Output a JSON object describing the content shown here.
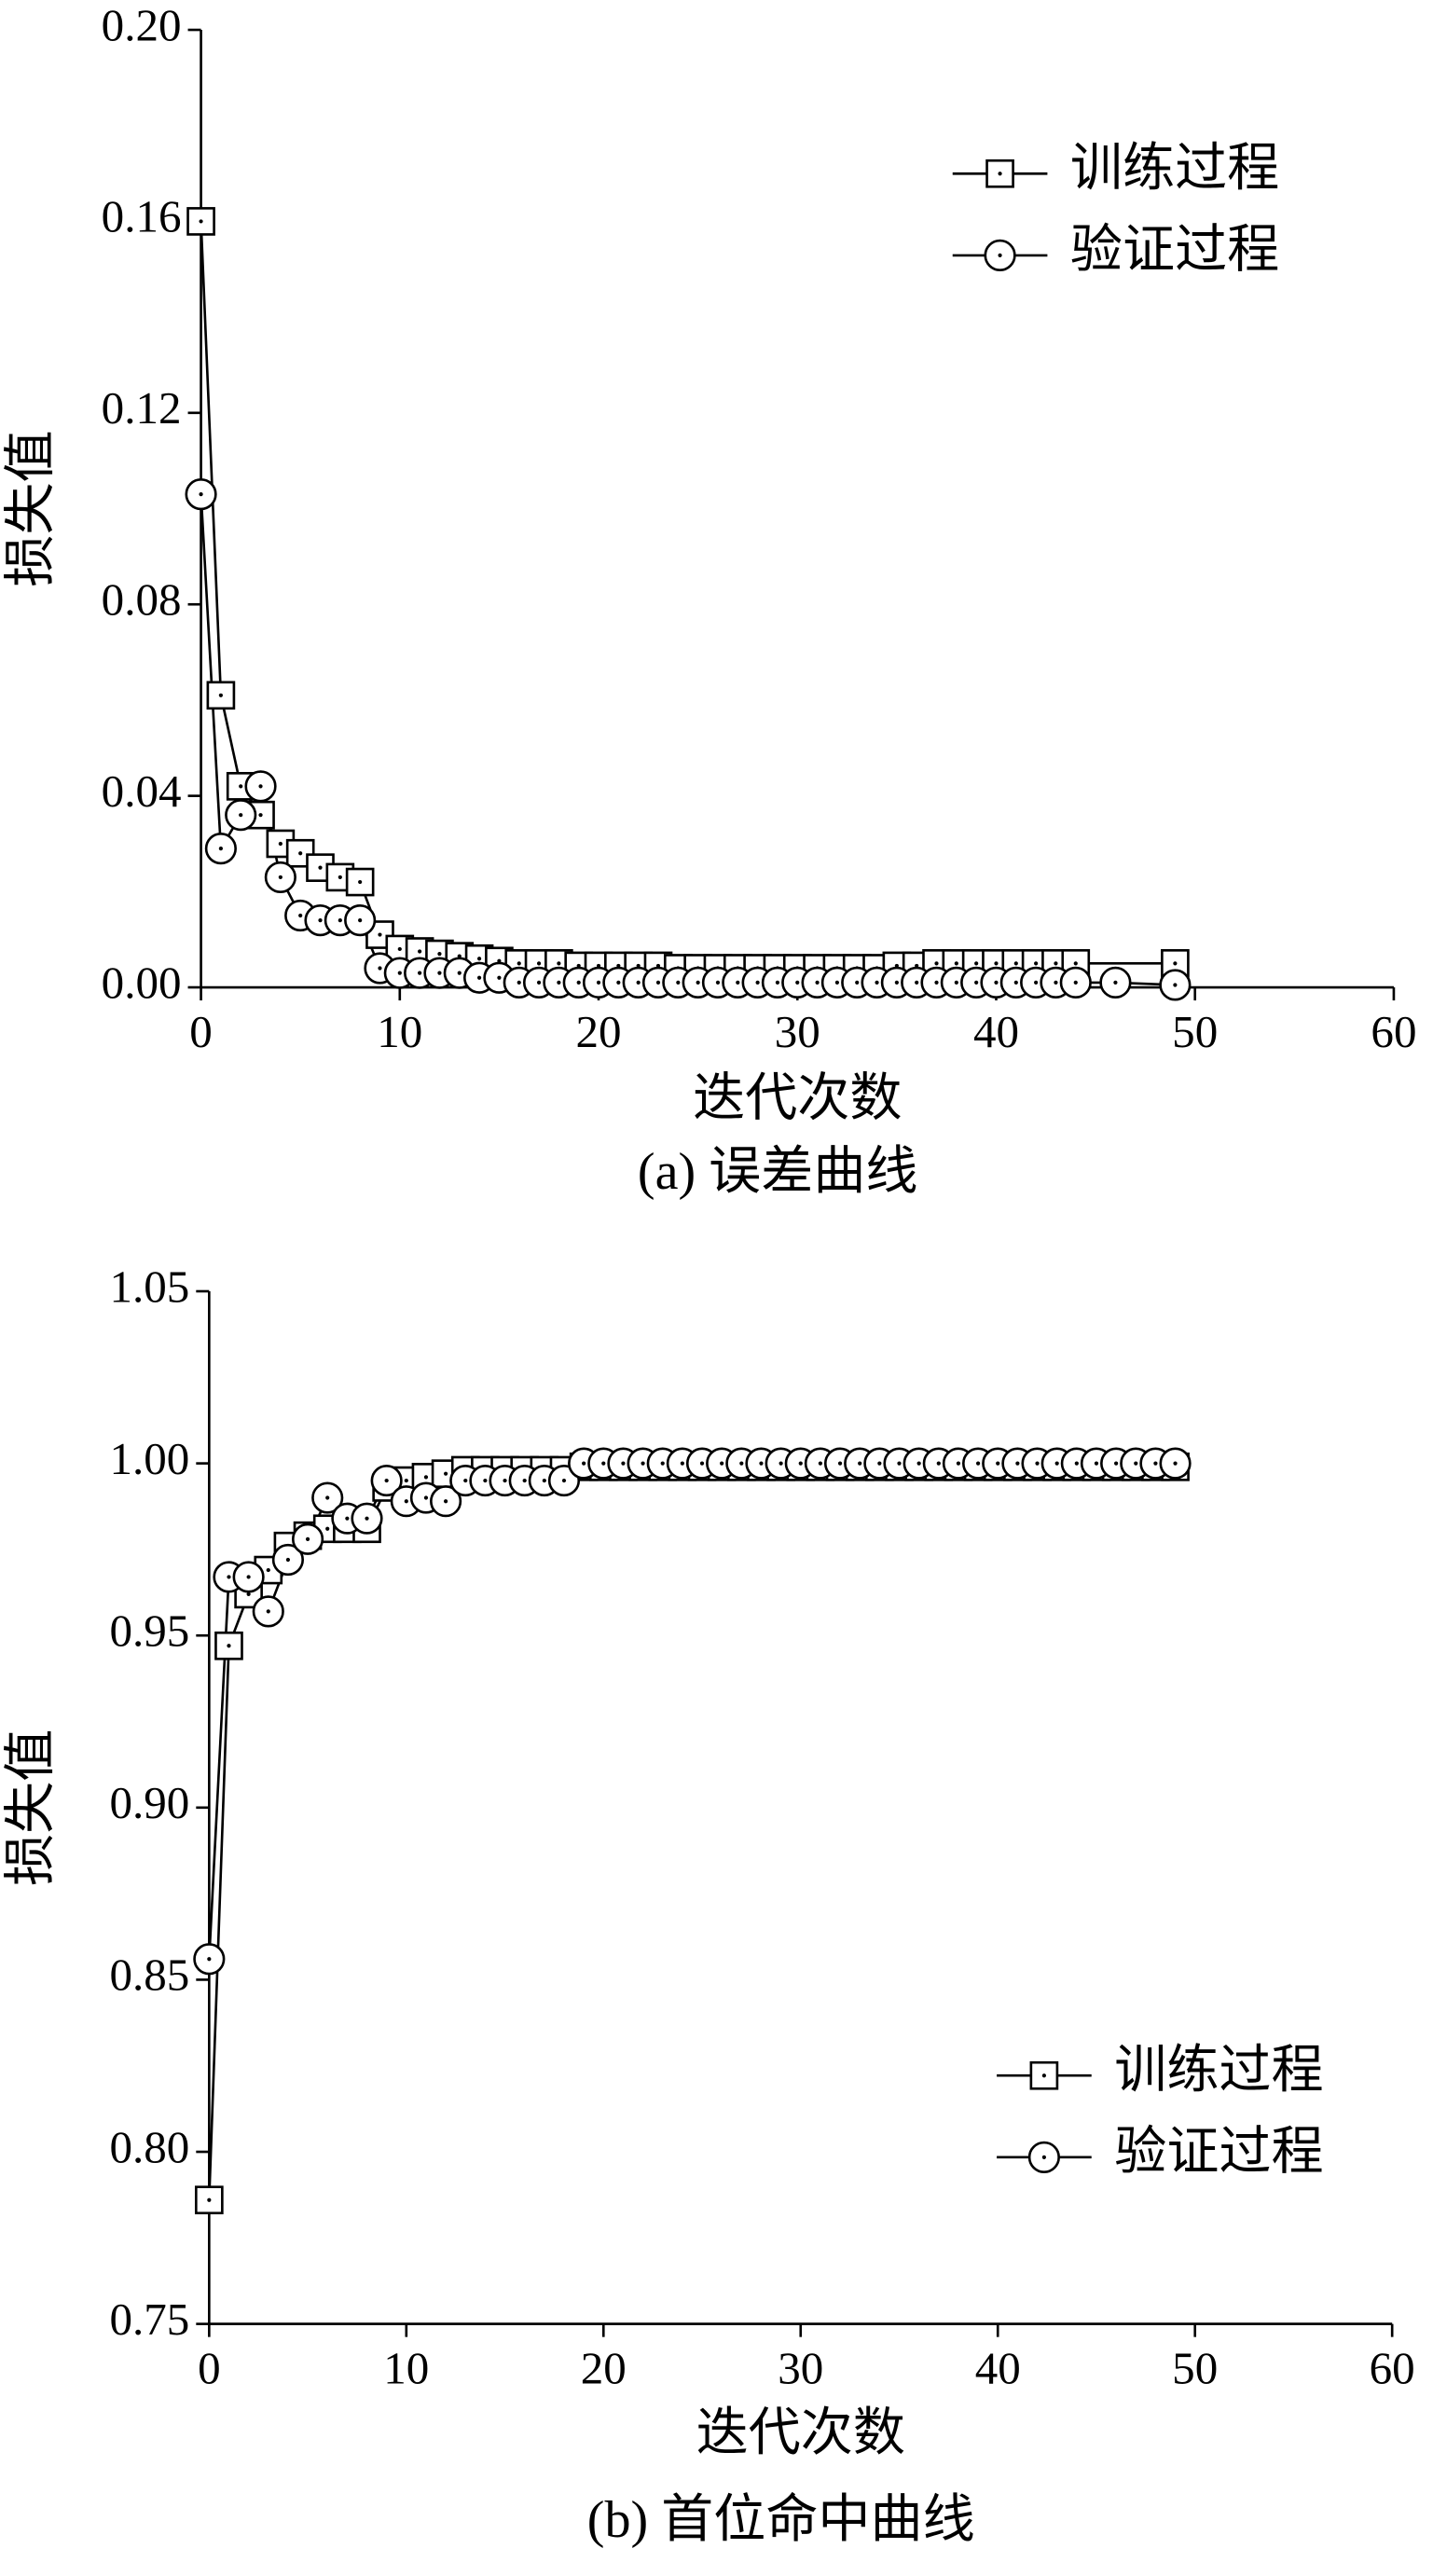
{
  "chart_data": [
    {
      "type": "line",
      "caption": "(a) 误差曲线",
      "x_label": "迭代次数",
      "y_label": "损失值",
      "legend": "upper right",
      "xlim": [
        0,
        60
      ],
      "xticks": [
        0,
        10,
        20,
        30,
        40,
        50,
        60
      ],
      "ylim": [
        0,
        0.2
      ],
      "yticks": [
        {
          "value": 0,
          "label": "0.00"
        },
        0.04,
        0.08,
        0.12,
        0.16,
        {
          "value": 0.2,
          "label": "0.20"
        }
      ],
      "series": [
        {
          "name": "训练过程",
          "color": "#000000",
          "marker": "square",
          "x": [
            0,
            1,
            2,
            3,
            4,
            5,
            6,
            7,
            8,
            9,
            10,
            11,
            12,
            13,
            14,
            15,
            16,
            17,
            18,
            19,
            20,
            21,
            22,
            23,
            24,
            25,
            26,
            27,
            28,
            29,
            30,
            31,
            32,
            33,
            34,
            35,
            36,
            37,
            38,
            39,
            40,
            41,
            42,
            43,
            44,
            49
          ],
          "values": [
            0.16,
            0.061,
            0.042,
            0.036,
            0.03,
            0.028,
            0.025,
            0.023,
            0.022,
            0.011,
            0.008,
            0.0075,
            0.007,
            0.0065,
            0.006,
            0.0055,
            0.005,
            0.005,
            0.005,
            0.0045,
            0.0045,
            0.0045,
            0.0045,
            0.0045,
            0.004,
            0.004,
            0.004,
            0.004,
            0.004,
            0.004,
            0.004,
            0.004,
            0.004,
            0.004,
            0.004,
            0.0045,
            0.0045,
            0.005,
            0.005,
            0.005,
            0.005,
            0.005,
            0.005,
            0.005,
            0.005,
            0.005
          ]
        },
        {
          "name": "验证过程",
          "color": "#000000",
          "marker": "circle",
          "x": [
            0,
            1,
            2,
            3,
            4,
            5,
            6,
            7,
            8,
            9,
            10,
            11,
            12,
            13,
            14,
            15,
            16,
            17,
            18,
            19,
            20,
            21,
            22,
            23,
            24,
            25,
            26,
            27,
            28,
            29,
            30,
            31,
            32,
            33,
            34,
            35,
            36,
            37,
            38,
            39,
            40,
            41,
            42,
            43,
            44,
            46,
            49
          ],
          "values": [
            0.103,
            0.029,
            0.036,
            0.042,
            0.023,
            0.015,
            0.014,
            0.014,
            0.014,
            0.004,
            0.003,
            0.003,
            0.003,
            0.003,
            0.002,
            0.002,
            0.001,
            0.001,
            0.001,
            0.001,
            0.001,
            0.001,
            0.001,
            0.001,
            0.001,
            0.001,
            0.001,
            0.001,
            0.001,
            0.001,
            0.001,
            0.001,
            0.001,
            0.001,
            0.001,
            0.001,
            0.001,
            0.001,
            0.001,
            0.001,
            0.001,
            0.001,
            0.001,
            0.001,
            0.001,
            0.001,
            0.0005
          ]
        }
      ]
    },
    {
      "type": "line",
      "caption": "(b) 首位命中曲线",
      "x_label": "迭代次数",
      "y_label": "损失值",
      "legend": "lower right",
      "xlim": [
        0,
        60
      ],
      "xticks": [
        0,
        10,
        20,
        30,
        40,
        50,
        60
      ],
      "ylim": [
        0.75,
        1.05
      ],
      "yticks": [
        0.75,
        {
          "value": 0.8,
          "label": "0.80"
        },
        0.85,
        {
          "value": 0.9,
          "label": "0.90"
        },
        0.95,
        {
          "value": 1,
          "label": "1.00"
        },
        1.05
      ],
      "series": [
        {
          "name": "训练过程",
          "color": "#000000",
          "marker": "square",
          "x": [
            0,
            1,
            2,
            3,
            4,
            5,
            6,
            7,
            8,
            9,
            10,
            11,
            12,
            13,
            14,
            15,
            16,
            17,
            18,
            19,
            20,
            21,
            22,
            23,
            24,
            25,
            26,
            27,
            28,
            29,
            30,
            31,
            32,
            33,
            34,
            35,
            36,
            37,
            38,
            39,
            40,
            41,
            42,
            43,
            44,
            45,
            46,
            47,
            48,
            49
          ],
          "values": [
            0.786,
            0.947,
            0.962,
            0.969,
            0.976,
            0.979,
            0.981,
            0.981,
            0.981,
            0.993,
            0.995,
            0.996,
            0.997,
            0.998,
            0.998,
            0.998,
            0.998,
            0.998,
            0.998,
            0.999,
            0.999,
            0.999,
            0.999,
            0.999,
            0.999,
            0.999,
            0.999,
            0.999,
            0.999,
            0.999,
            0.999,
            0.999,
            0.999,
            0.999,
            0.999,
            0.999,
            0.999,
            0.999,
            0.999,
            0.999,
            0.999,
            0.999,
            0.999,
            0.999,
            0.999,
            0.999,
            0.999,
            0.999,
            0.999,
            0.999
          ]
        },
        {
          "name": "验证过程",
          "color": "#000000",
          "marker": "circle",
          "x": [
            0,
            1,
            2,
            3,
            4,
            5,
            6,
            7,
            8,
            9,
            10,
            11,
            12,
            13,
            14,
            15,
            16,
            17,
            18,
            19,
            20,
            21,
            22,
            23,
            24,
            25,
            26,
            27,
            28,
            29,
            30,
            31,
            32,
            33,
            34,
            35,
            36,
            37,
            38,
            39,
            40,
            41,
            42,
            43,
            44,
            45,
            46,
            47,
            48,
            49
          ],
          "values": [
            0.856,
            0.967,
            0.967,
            0.957,
            0.972,
            0.978,
            0.99,
            0.984,
            0.984,
            0.995,
            0.989,
            0.99,
            0.989,
            0.995,
            0.995,
            0.995,
            0.995,
            0.995,
            0.995,
            1,
            1,
            1,
            1,
            1,
            1,
            1,
            1,
            1,
            1,
            1,
            1,
            1,
            1,
            1,
            1,
            1,
            1,
            1,
            1,
            1,
            1,
            1,
            1,
            1,
            1,
            1,
            1,
            1,
            1,
            1
          ]
        }
      ]
    }
  ]
}
